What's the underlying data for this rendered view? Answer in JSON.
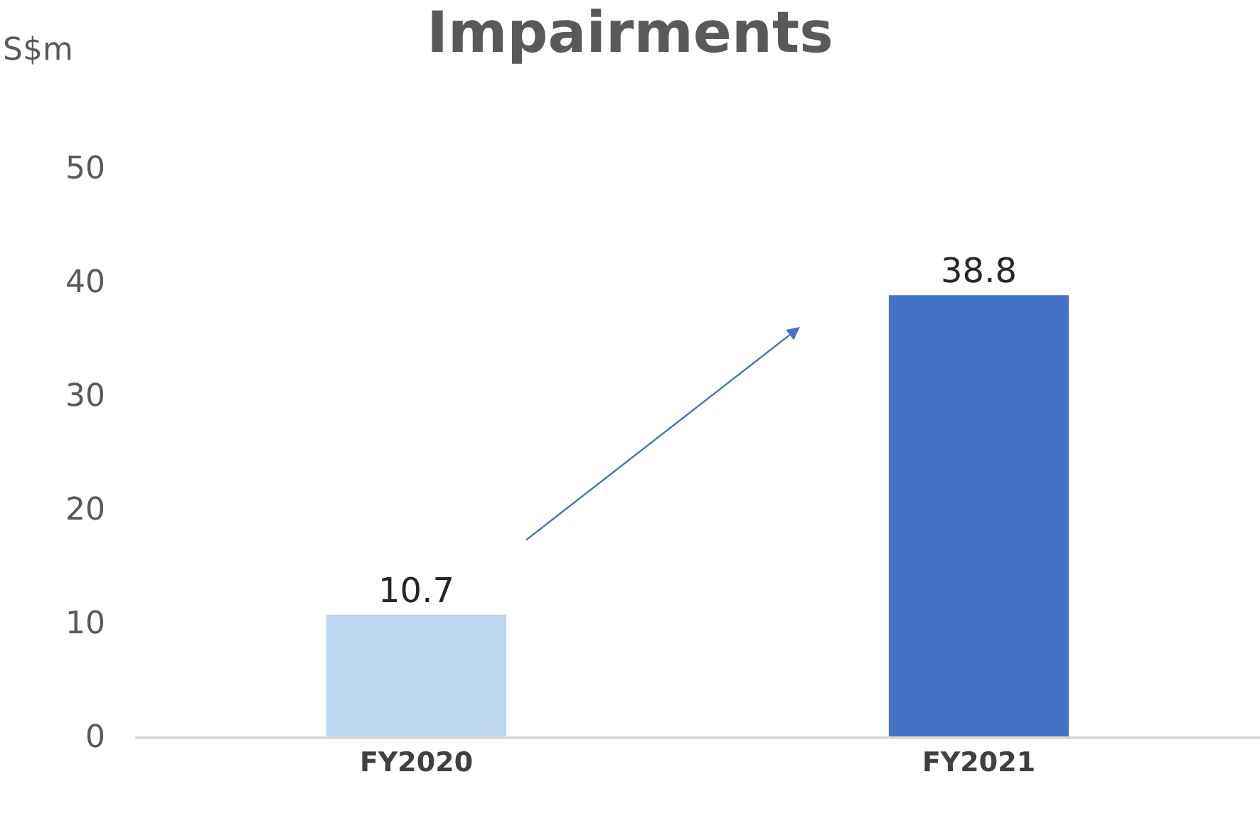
{
  "chart_data": {
    "type": "bar",
    "title": "Impairments",
    "ylabel": "S$m",
    "categories": [
      "FY2020",
      "FY2021"
    ],
    "values": [
      10.7,
      38.8
    ],
    "colors": [
      "#bdd7ee",
      "#4472c4"
    ],
    "ylim": [
      0,
      50
    ],
    "yticks": [
      0,
      10,
      20,
      30,
      40,
      50
    ],
    "data_labels": true
  }
}
